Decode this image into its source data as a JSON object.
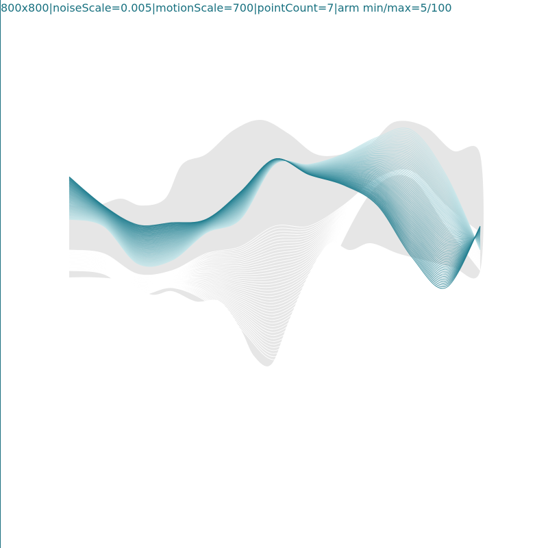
{
  "header": {
    "text": "800x800|noiseScale=0.005|motionScale=700|pointCount=7|arm min/max=5/100"
  },
  "colors": {
    "background": "#ffffff",
    "shadow": "#e6e6e6",
    "teal_dark": "#1b7a8c",
    "teal_light": "#c6e6ea",
    "frame_line": "#1b6f80"
  }
}
